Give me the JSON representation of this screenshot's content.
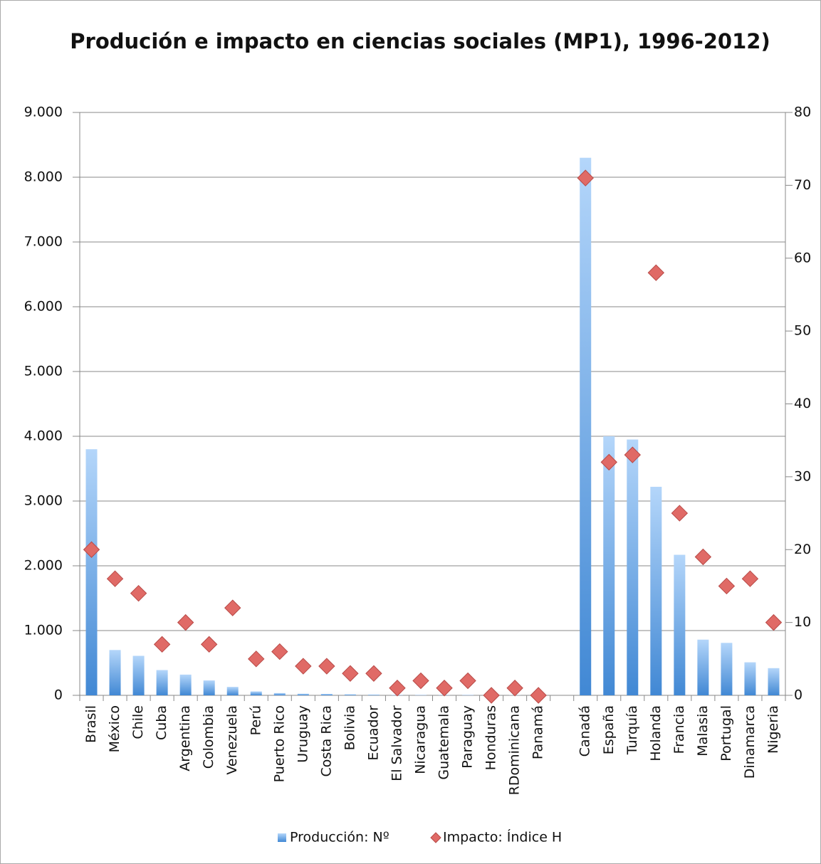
{
  "chart_data": {
    "type": "bar_scatter",
    "title": "Produción e impacto en ciencias sociales (MP1), 1996-2012)",
    "categories": [
      "Brasil",
      "México",
      "Chile",
      "Cuba",
      "Argentina",
      "Colombia",
      "Venezuela",
      "Perú",
      "Puerto Rico",
      "Uruguay",
      "Costa Rica",
      "Bolivia",
      "Ecuador",
      "El Salvador",
      "Nicaragua",
      "Guatemala",
      "Paraguay",
      "Honduras",
      "RDominicana",
      "Panamá",
      null,
      "Canadá",
      "España",
      "Turquía",
      "Holanda",
      "Francia",
      "Malasia",
      "Portugal",
      "Dinamarca",
      "Nigeria"
    ],
    "series": [
      {
        "name": "Producción: Nº",
        "color": "#5b9be0",
        "type": "bar",
        "values": [
          3800,
          700,
          610,
          390,
          320,
          230,
          130,
          60,
          35,
          25,
          22,
          15,
          10,
          5,
          5,
          5,
          5,
          3,
          3,
          3,
          null,
          8300,
          4000,
          3950,
          3220,
          2170,
          860,
          810,
          510,
          420
        ]
      },
      {
        "name": "Impacto: Índice H",
        "color": "#e06a66",
        "type": "scatter",
        "axis": "y2",
        "values": [
          20,
          16,
          14,
          7,
          10,
          7,
          12,
          5,
          6,
          4,
          4,
          3,
          3,
          1,
          2,
          1,
          2,
          0,
          1,
          0,
          null,
          71,
          32,
          33,
          58,
          25,
          19,
          15,
          16,
          10
        ]
      }
    ],
    "ylim": [
      0,
      9000
    ],
    "yticks": [
      0,
      {
        "value": 1000,
        "label": "1.000"
      },
      {
        "value": 2000,
        "label": "2.000"
      },
      {
        "value": 3000,
        "label": "3.000"
      },
      {
        "value": 4000,
        "label": "4.000"
      },
      {
        "value": 5000,
        "label": "5.000"
      },
      {
        "value": 6000,
        "label": "6.000"
      },
      {
        "value": 7000,
        "label": "7.000"
      },
      {
        "value": 8000,
        "label": "8.000"
      },
      {
        "value": 9000,
        "label": "9.000"
      }
    ],
    "y2lim": [
      0,
      80
    ],
    "y2ticks": [
      0,
      10,
      20,
      30,
      40,
      50,
      60,
      70,
      80
    ],
    "grid": true,
    "legend": "bottom"
  }
}
